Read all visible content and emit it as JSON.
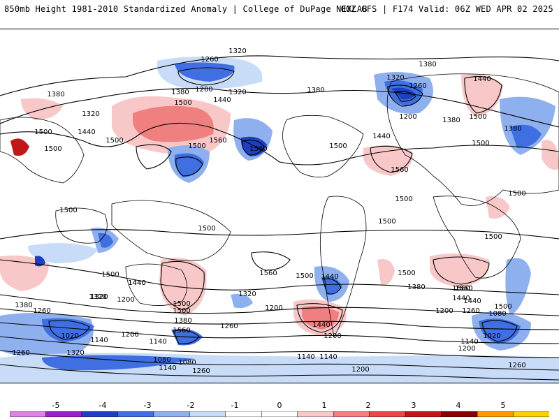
{
  "header": {
    "title_left": "850mb Height 1981-2010 Standardized Anomaly | College of DuPage NEXLAB",
    "title_right": "00Z GFS | F174 Valid: 06Z WED APR 02 2025"
  },
  "colorbar": {
    "ticks": [
      "-5",
      "-4",
      "-3",
      "-2",
      "-1",
      "0",
      "1",
      "2",
      "3",
      "4",
      "5"
    ],
    "colors": [
      "#e080e8",
      "#9a20c8",
      "#1f3fc0",
      "#3f6fe0",
      "#8fb0ee",
      "#c8dcf8",
      "#ffffff",
      "#ffffff",
      "#f8c8c8",
      "#f08080",
      "#e84848",
      "#c01818",
      "#880000",
      "#ff9a00",
      "#ffd000"
    ]
  },
  "contour_labels": [
    {
      "text": "1320"
    },
    {
      "text": "1260"
    },
    {
      "text": "1380"
    },
    {
      "text": "1200"
    },
    {
      "text": "1320"
    },
    {
      "text": "1380"
    },
    {
      "text": "1500"
    },
    {
      "text": "1440"
    },
    {
      "text": "1380"
    },
    {
      "text": "1320"
    },
    {
      "text": "1260"
    },
    {
      "text": "1440"
    },
    {
      "text": "1380"
    },
    {
      "text": "1320"
    },
    {
      "text": "1500"
    },
    {
      "text": "1200"
    },
    {
      "text": "1380"
    },
    {
      "text": "1500"
    },
    {
      "text": "1500"
    },
    {
      "text": "1440"
    },
    {
      "text": "1500"
    },
    {
      "text": "1560"
    },
    {
      "text": "1500"
    },
    {
      "text": "1560"
    },
    {
      "text": "1500"
    },
    {
      "text": "1500"
    },
    {
      "text": "1440"
    },
    {
      "text": "1500"
    },
    {
      "text": "1380"
    },
    {
      "text": "1560"
    },
    {
      "text": "1500"
    },
    {
      "text": "1500"
    },
    {
      "text": "1500"
    },
    {
      "text": "1500"
    },
    {
      "text": "1500"
    },
    {
      "text": "1500"
    },
    {
      "text": "1500"
    },
    {
      "text": "1560"
    },
    {
      "text": "1500"
    },
    {
      "text": "1440"
    },
    {
      "text": "1500"
    },
    {
      "text": "1560"
    },
    {
      "text": "1440"
    },
    {
      "text": "1320"
    },
    {
      "text": "1200"
    },
    {
      "text": "1560"
    },
    {
      "text": "1500"
    },
    {
      "text": "1380"
    },
    {
      "text": "1320"
    },
    {
      "text": "1200"
    },
    {
      "text": "1440"
    },
    {
      "text": "1260"
    },
    {
      "text": "1560"
    },
    {
      "text": "1440"
    },
    {
      "text": "1200"
    },
    {
      "text": "1260"
    },
    {
      "text": "1080"
    },
    {
      "text": "1020"
    },
    {
      "text": "1140"
    },
    {
      "text": "1200"
    },
    {
      "text": "1140"
    },
    {
      "text": "1080"
    },
    {
      "text": "1020"
    },
    {
      "text": "1140"
    },
    {
      "text": "1200"
    },
    {
      "text": "1320"
    },
    {
      "text": "1260"
    },
    {
      "text": "1200"
    },
    {
      "text": "1140"
    },
    {
      "text": "1140"
    },
    {
      "text": "1080"
    },
    {
      "text": "1260"
    },
    {
      "text": "1260"
    },
    {
      "text": "1140"
    },
    {
      "text": "1320"
    },
    {
      "text": "1380"
    },
    {
      "text": "1440"
    },
    {
      "text": "1260"
    },
    {
      "text": "1200"
    },
    {
      "text": "1380"
    },
    {
      "text": "1440"
    },
    {
      "text": "1500"
    },
    {
      "text": "1560"
    }
  ]
}
